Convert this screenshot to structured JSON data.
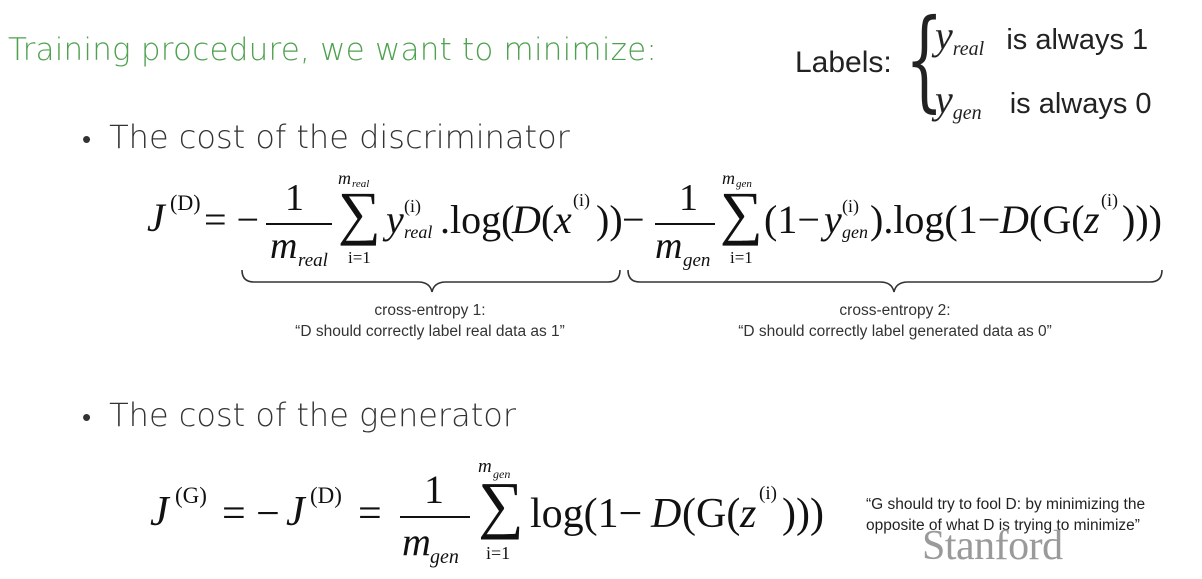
{
  "slide": {
    "title": "Training procedure, we want to minimize:",
    "labels": {
      "word": "Labels:",
      "rows": [
        {
          "var": "y",
          "sub": "real",
          "text": "is always 1"
        },
        {
          "var": "y",
          "sub": "gen",
          "text": "is always 0"
        }
      ]
    },
    "bullets": [
      {
        "text": "The cost of the discriminator"
      },
      {
        "text": "The cost of the generator"
      }
    ],
    "cross_entropy_1": {
      "title": "cross-entropy 1:",
      "text": "“D should correctly label real data as 1”"
    },
    "cross_entropy_2": {
      "title": "cross-entropy 2:",
      "text": "“D should correctly label generated data as 0”"
    },
    "generator_note": {
      "line1": "“G should try to fool D: by minimizing the",
      "line2": "opposite of what D is trying to minimize”"
    },
    "watermark": "Stanford",
    "eq1": {
      "lhs": "J",
      "lhs_sup": "(D)",
      "equals": "= −",
      "frac1_num": "1",
      "frac1_den": "m",
      "frac1_den_sub": "real",
      "sum1_top": "m",
      "sum1_top_sub": "real",
      "sum1_bottom": "i=1",
      "term1_y": "y",
      "term1_y_sup": "(i)",
      "term1_y_sub": "real",
      "term1_rest_a": ".log(",
      "term1_D": "D",
      "term1_rest_b": "(",
      "term1_x": "x",
      "term1_x_sup": "(i)",
      "term1_close": "))",
      "minus": "−",
      "frac2_num": "1",
      "frac2_den": "m",
      "frac2_den_sub": "gen",
      "sum2_top": "m",
      "sum2_top_sub": "gen",
      "sum2_bottom": "i=1",
      "term2_open": "(1−",
      "term2_y": "y",
      "term2_y_sup": "(i)",
      "term2_y_sub": "gen",
      "term2_rest": ").log(1−",
      "term2_D": "D",
      "term2_G": "(G(",
      "term2_z": "z",
      "term2_z_sup": "(i)",
      "term2_close": ")))"
    },
    "eq2": {
      "lhs": "J",
      "lhs_sup": "(G)",
      "equals1": "= −",
      "rhs_J": "J",
      "rhs_J_sup": "(D)",
      "equals2": "=",
      "frac_num": "1",
      "frac_den": "m",
      "frac_den_sub": "gen",
      "sum_top": "m",
      "sum_top_sub": "gen",
      "sum_bottom": "i=1",
      "log": "log(1−",
      "D": "D",
      "G": "(G(",
      "z": "z",
      "z_sup": "(i)",
      "close": ")))"
    }
  }
}
